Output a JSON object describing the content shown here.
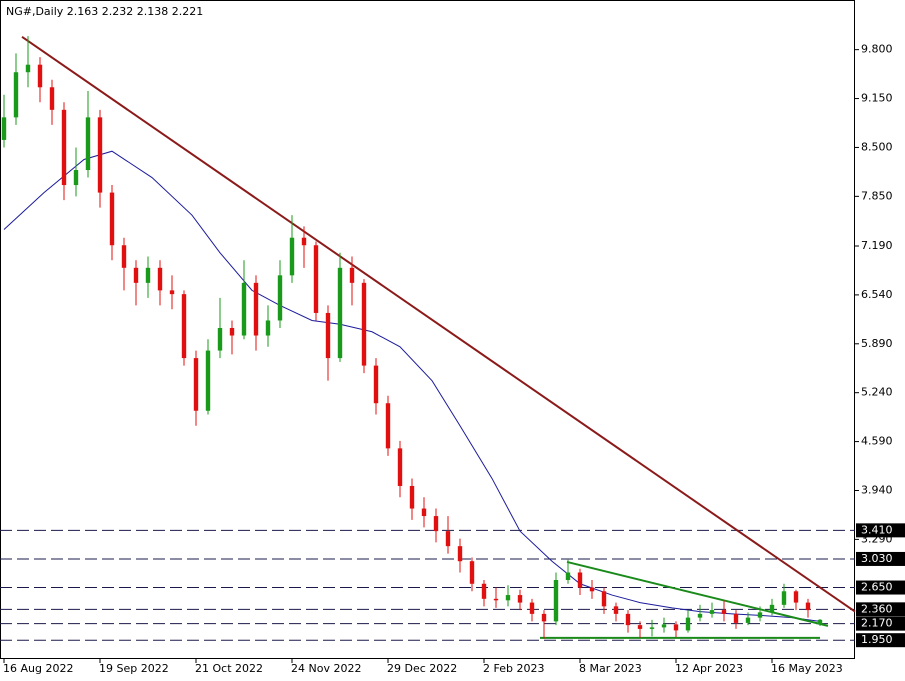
{
  "chart_data": {
    "type": "candlestick",
    "title": "NG#,Daily  2.163 2.232 2.138 2.221",
    "xlim": [
      -1,
      212.75
    ],
    "ylim": [
      1.7,
      10.46
    ],
    "xticks": [
      {
        "value": 0,
        "label": "16 Aug 2022"
      },
      {
        "value": 24,
        "label": "19 Sep 2022"
      },
      {
        "value": 48,
        "label": "21 Oct 2022"
      },
      {
        "value": 72,
        "label": "24 Nov 2022"
      },
      {
        "value": 96,
        "label": "29 Dec 2022"
      },
      {
        "value": 120,
        "label": "2 Feb 2023"
      },
      {
        "value": 144,
        "label": "8 Mar 2023"
      },
      {
        "value": 168,
        "label": "12 Apr 2023"
      },
      {
        "value": 192,
        "label": "16 May 2023"
      }
    ],
    "yticks": [
      {
        "value": 9.8,
        "label": "9.800"
      },
      {
        "value": 9.15,
        "label": "9.150"
      },
      {
        "value": 8.5,
        "label": "8.500"
      },
      {
        "value": 7.85,
        "label": "7.850"
      },
      {
        "value": 7.19,
        "label": "7.190"
      },
      {
        "value": 6.54,
        "label": "6.540"
      },
      {
        "value": 5.89,
        "label": "5.890"
      },
      {
        "value": 5.24,
        "label": "5.240"
      },
      {
        "value": 4.59,
        "label": "4.590"
      },
      {
        "value": 3.94,
        "label": "3.940"
      },
      {
        "value": 3.29,
        "label": "3.290"
      }
    ],
    "levels": [
      {
        "value": 3.41,
        "label": "3.410"
      },
      {
        "value": 3.03,
        "label": "3.030"
      },
      {
        "value": 2.65,
        "label": "2.650"
      },
      {
        "value": 2.36,
        "label": "2.360"
      },
      {
        "value": 2.17,
        "label": "2.170"
      },
      {
        "value": 1.95,
        "label": "1.950"
      }
    ],
    "up_color": "#1a9a1a",
    "down_color": "#e01010",
    "level_color": "#1a1a4a",
    "x": [
      0,
      3,
      6,
      9,
      12,
      15,
      18,
      21,
      24,
      27,
      30,
      33,
      36,
      39,
      42,
      45,
      48,
      51,
      54,
      57,
      60,
      63,
      66,
      69,
      72,
      75,
      78,
      81,
      84,
      87,
      90,
      93,
      96,
      99,
      102,
      105,
      108,
      111,
      114,
      117,
      120,
      123,
      126,
      129,
      132,
      135,
      138,
      141,
      144,
      147,
      150,
      153,
      156,
      159,
      162,
      165,
      168,
      171,
      174,
      177,
      180,
      183,
      186,
      189,
      192,
      195,
      198,
      201,
      204
    ],
    "open": [
      8.6,
      8.9,
      9.5,
      9.6,
      9.3,
      9.0,
      8.0,
      8.2,
      8.9,
      7.9,
      7.2,
      6.9,
      6.7,
      6.9,
      6.6,
      6.55,
      5.7,
      5.0,
      5.8,
      6.1,
      6.0,
      6.7,
      6.0,
      6.2,
      6.8,
      7.3,
      7.2,
      6.3,
      5.7,
      6.9,
      6.7,
      5.6,
      5.1,
      4.5,
      4.0,
      3.7,
      3.6,
      3.4,
      3.2,
      3.0,
      2.7,
      2.5,
      2.48,
      2.55,
      2.45,
      2.3,
      2.2,
      2.75,
      2.85,
      2.65,
      2.6,
      2.4,
      2.3,
      2.15,
      2.1,
      2.12,
      2.16,
      2.08,
      2.25,
      2.3,
      2.35,
      2.3,
      2.18,
      2.25,
      2.32,
      2.42,
      2.6,
      2.45,
      2.163
    ],
    "high": [
      9.2,
      9.75,
      9.98,
      9.7,
      9.4,
      9.1,
      8.5,
      9.25,
      9.0,
      8.0,
      7.3,
      7.0,
      7.05,
      7.0,
      6.8,
      6.6,
      5.8,
      5.95,
      6.5,
      6.2,
      7.0,
      6.8,
      6.4,
      7.0,
      7.6,
      7.45,
      7.25,
      6.4,
      7.1,
      7.05,
      6.75,
      5.7,
      5.2,
      4.6,
      4.1,
      3.85,
      3.7,
      3.6,
      3.3,
      3.05,
      2.75,
      2.65,
      2.68,
      2.62,
      2.5,
      2.35,
      2.85,
      3.02,
      2.9,
      2.75,
      2.65,
      2.45,
      2.35,
      2.2,
      2.22,
      2.25,
      2.2,
      2.35,
      2.42,
      2.45,
      2.48,
      2.35,
      2.32,
      2.4,
      2.5,
      2.7,
      2.62,
      2.5,
      2.232
    ],
    "low": [
      8.5,
      8.8,
      9.3,
      9.1,
      8.8,
      7.8,
      7.85,
      8.1,
      7.7,
      7.0,
      6.6,
      6.4,
      6.5,
      6.4,
      6.35,
      5.6,
      4.8,
      4.95,
      5.7,
      5.75,
      5.95,
      5.8,
      5.85,
      6.1,
      6.7,
      6.9,
      6.2,
      5.4,
      5.65,
      6.4,
      5.5,
      4.95,
      4.4,
      3.85,
      3.55,
      3.45,
      3.25,
      3.1,
      2.85,
      2.6,
      2.4,
      2.38,
      2.4,
      2.35,
      2.2,
      1.97,
      2.15,
      2.7,
      2.55,
      2.5,
      2.3,
      2.2,
      2.05,
      1.98,
      2.0,
      2.05,
      1.99,
      2.05,
      2.2,
      2.25,
      2.2,
      2.1,
      2.15,
      2.2,
      2.28,
      2.38,
      2.35,
      2.25,
      2.138
    ],
    "close": [
      8.9,
      9.5,
      9.6,
      9.3,
      9.0,
      8.0,
      8.2,
      8.9,
      7.9,
      7.2,
      6.9,
      6.7,
      6.9,
      6.6,
      6.55,
      5.7,
      5.0,
      5.8,
      6.1,
      6.0,
      6.7,
      6.0,
      6.2,
      6.8,
      7.3,
      7.2,
      6.3,
      5.7,
      6.9,
      6.7,
      5.6,
      5.1,
      4.5,
      4.0,
      3.7,
      3.6,
      3.4,
      3.2,
      3.0,
      2.7,
      2.5,
      2.48,
      2.55,
      2.45,
      2.3,
      2.2,
      2.75,
      2.85,
      2.65,
      2.6,
      2.4,
      2.3,
      2.15,
      2.1,
      2.12,
      2.16,
      2.08,
      2.25,
      2.3,
      2.35,
      2.3,
      2.18,
      2.25,
      2.32,
      2.42,
      2.6,
      2.45,
      2.35,
      2.221
    ],
    "overlays": [
      {
        "color": "#1c1c9c",
        "x": [
          0,
          10,
          20,
          27,
          37,
          47,
          54,
          62,
          69,
          77,
          84,
          92,
          99,
          107,
          114,
          122,
          129,
          137,
          144,
          152,
          159,
          167,
          174,
          182,
          189,
          197,
          204
        ],
        "values": [
          7.41,
          7.9,
          8.34,
          8.45,
          8.1,
          7.6,
          7.1,
          6.6,
          6.4,
          6.2,
          6.15,
          6.05,
          5.85,
          5.4,
          4.8,
          4.1,
          3.4,
          3.0,
          2.7,
          2.55,
          2.45,
          2.38,
          2.33,
          2.3,
          2.28,
          2.25,
          2.2
        ]
      },
      {
        "color": "#8b1a1a",
        "x": [
          4.5,
          212.75
        ],
        "values": [
          9.97,
          2.33
        ]
      },
      {
        "color": "#1a8a1a",
        "x": [
          140.75,
          206
        ],
        "values": [
          2.99,
          2.14
        ]
      },
      {
        "color": "#1a8a1a",
        "x": [
          134,
          204
        ],
        "values": [
          1.98,
          1.98
        ]
      }
    ]
  }
}
